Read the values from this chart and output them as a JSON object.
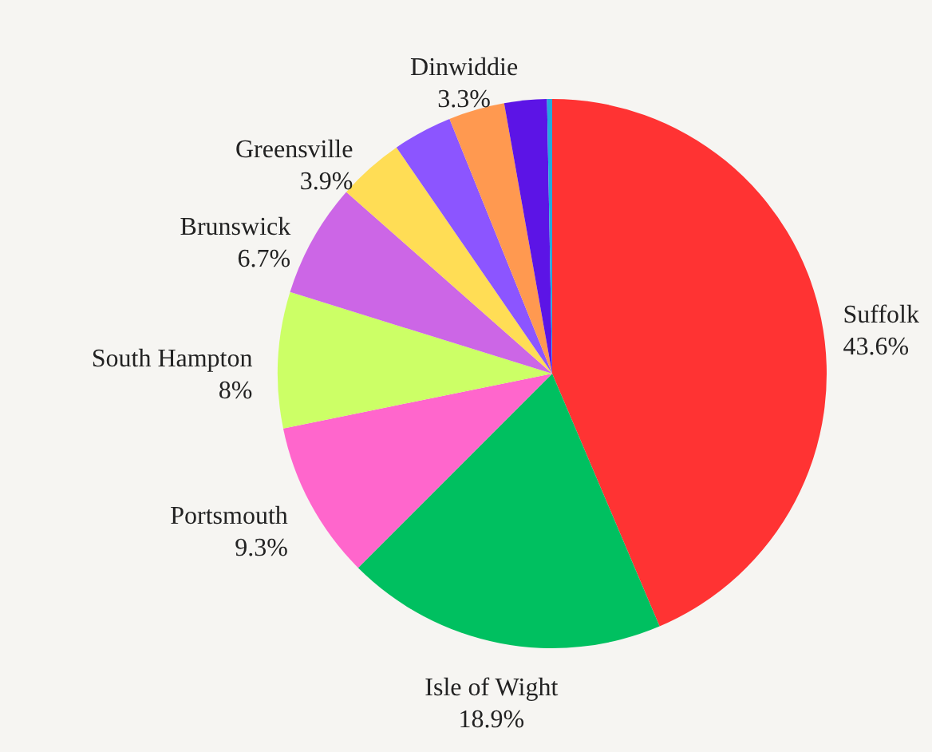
{
  "chart_data": {
    "type": "pie",
    "categories": [
      "Suffolk",
      "Isle of Wight",
      "Portsmouth",
      "South Hampton",
      "Brunswick",
      "Greensville",
      null,
      "Dinwiddie",
      null,
      null
    ],
    "values": [
      43.6,
      18.9,
      9.3,
      8,
      6.7,
      3.9,
      3.5,
      3.3,
      2.5,
      0.3
    ],
    "value_labels": [
      "43.6%",
      "18.9%",
      "9.3%",
      "8%",
      "6.7%",
      "3.9%",
      null,
      "3.3%",
      null,
      null
    ],
    "colors": [
      "#ff3333",
      "#00c060",
      "#ff66cc",
      "#ccff66",
      "#cc66e6",
      "#ffdd55",
      "#8c55ff",
      "#ff9950",
      "#5c14e6",
      "#22aadd"
    ]
  }
}
